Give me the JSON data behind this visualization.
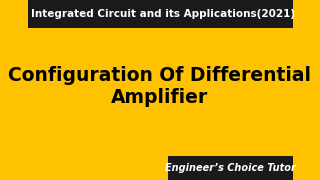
{
  "background_color": "#FFC200",
  "title_text": "Configuration Of Differential\nAmplifier",
  "title_color": "#000000",
  "title_fontsize": 13.5,
  "title_fontweight": "bold",
  "header_text": "Integrated Circuit and its Applications(2021)",
  "header_bg": "#1a1a1a",
  "header_text_color": "#ffffff",
  "header_fontsize": 7.5,
  "header_fontweight": "bold",
  "footer_text": "Engineer’s Choice Tutor",
  "footer_bg": "#1a1a1a",
  "footer_text_color": "#ffffff",
  "footer_fontsize": 7.0,
  "footer_fontweight": "bold"
}
